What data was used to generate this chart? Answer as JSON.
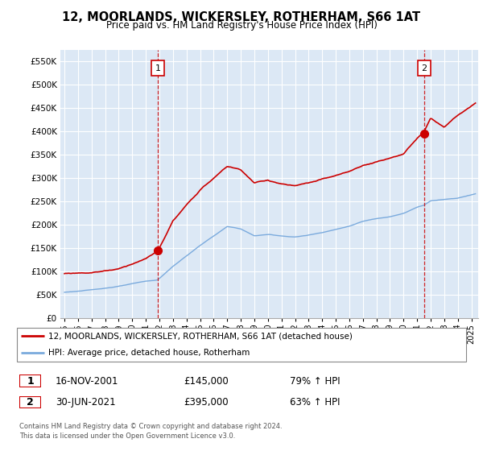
{
  "title": "12, MOORLANDS, WICKERSLEY, ROTHERHAM, S66 1AT",
  "subtitle": "Price paid vs. HM Land Registry's House Price Index (HPI)",
  "legend_line1": "12, MOORLANDS, WICKERSLEY, ROTHERHAM, S66 1AT (detached house)",
  "legend_line2": "HPI: Average price, detached house, Rotherham",
  "sale1_date": "16-NOV-2001",
  "sale1_price": "£145,000",
  "sale1_hpi": "79% ↑ HPI",
  "sale2_date": "30-JUN-2021",
  "sale2_price": "£395,000",
  "sale2_hpi": "63% ↑ HPI",
  "footnote": "Contains HM Land Registry data © Crown copyright and database right 2024.\nThis data is licensed under the Open Government Licence v3.0.",
  "ylim": [
    0,
    575000
  ],
  "yticks": [
    0,
    50000,
    100000,
    150000,
    200000,
    250000,
    300000,
    350000,
    400000,
    450000,
    500000,
    550000
  ],
  "xlim_start": 1994.7,
  "xlim_end": 2025.5,
  "red_color": "#cc0000",
  "blue_color": "#7aaadd",
  "bg_color": "#dce8f5",
  "background_color": "#ffffff",
  "grid_color": "#ffffff",
  "sale1_x": 2001.88,
  "sale1_y": 145000,
  "sale2_x": 2021.5,
  "sale2_y": 395000
}
